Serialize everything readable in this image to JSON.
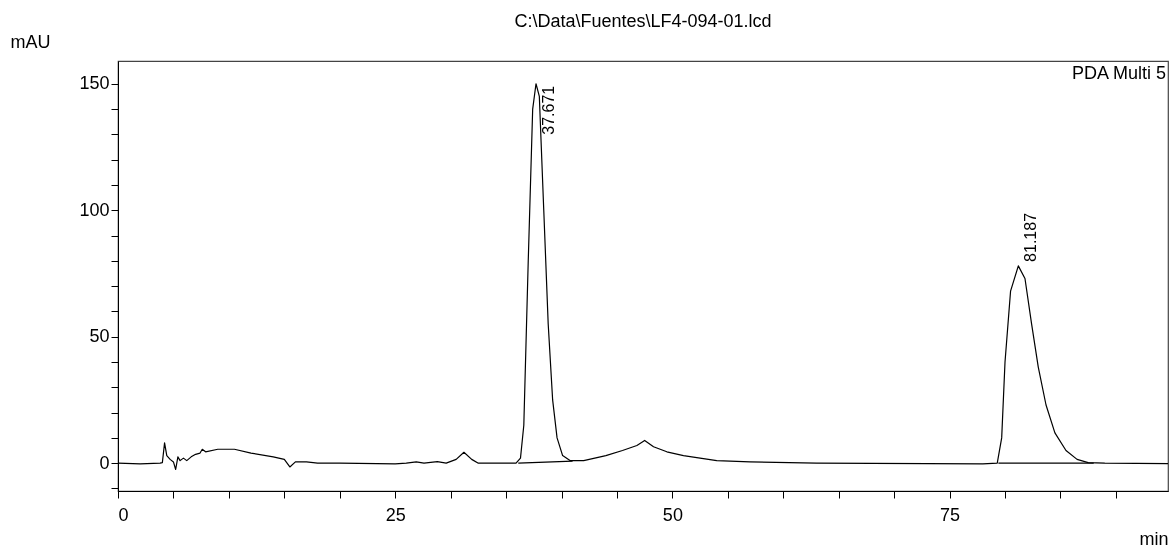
{
  "chart_data": {
    "type": "line",
    "title": "C:\\Data\\Fuentes\\LF4-094-01.lcd",
    "xlabel": "min",
    "ylabel": "mAU",
    "xlim": [
      0,
      94.7
    ],
    "ylim": [
      -11,
      159
    ],
    "xticks": [
      0,
      {
        "value": 5,
        "label": null
      },
      {
        "value": 10,
        "label": null
      },
      {
        "value": 15,
        "label": null
      },
      {
        "value": 20,
        "label": null
      },
      25,
      {
        "value": 30,
        "label": null
      },
      {
        "value": 35,
        "label": null
      },
      {
        "value": 40,
        "label": null
      },
      {
        "value": 45,
        "label": null
      },
      50,
      {
        "value": 55,
        "label": null
      },
      {
        "value": 60,
        "label": null
      },
      {
        "value": 65,
        "label": null
      },
      {
        "value": 70,
        "label": null
      },
      75,
      {
        "value": 80,
        "label": null
      },
      {
        "value": 85,
        "label": null
      },
      {
        "value": 90,
        "label": null
      }
    ],
    "yticks": [
      {
        "value": -10,
        "label": null
      },
      0,
      {
        "value": 10,
        "label": null
      },
      {
        "value": 20,
        "label": null
      },
      {
        "value": 30,
        "label": null
      },
      {
        "value": 40,
        "label": null
      },
      50,
      {
        "value": 60,
        "label": null
      },
      {
        "value": 70,
        "label": null
      },
      {
        "value": 80,
        "label": null
      },
      {
        "value": 90,
        "label": null
      },
      100,
      {
        "value": 110,
        "label": null
      },
      {
        "value": 120,
        "label": null
      },
      {
        "value": 130,
        "label": null
      },
      {
        "value": 140,
        "label": null
      },
      150
    ],
    "grid": false,
    "marker": "none",
    "line_style": "solid",
    "series": [
      {
        "color": "#000000",
        "x": [
          0,
          2,
          3.8,
          4.0,
          4.2,
          4.4,
          4.7,
          5.0,
          5.2,
          5.4,
          5.6,
          5.9,
          6.2,
          6.6,
          7.0,
          7.4,
          7.6,
          7.9,
          9.0,
          10.5,
          12,
          14,
          15,
          15.5,
          16,
          17,
          18,
          20,
          25,
          26,
          26.9,
          27.6,
          28.8,
          29.6,
          30.5,
          31.2,
          31.9,
          32.5,
          35,
          35.9,
          36.3,
          36.6,
          37.0,
          37.4,
          37.7,
          38.0,
          38.4,
          38.8,
          39.2,
          39.6,
          40.1,
          40.8,
          42,
          44,
          45.5,
          46.8,
          47.5,
          48.3,
          49.5,
          51,
          54,
          57,
          63,
          78,
          79.3,
          79.7,
          80.0,
          80.5,
          81.2,
          81.8,
          82.4,
          83,
          83.7,
          84.5,
          85.5,
          86.5,
          87.5,
          89,
          94.7
        ],
        "values": [
          0,
          -0.3,
          0,
          0.2,
          8,
          3,
          1.5,
          0.5,
          -2.5,
          2.5,
          1.0,
          2,
          1,
          2.5,
          3.5,
          4,
          5.5,
          4.5,
          5.5,
          5.5,
          4,
          2.5,
          1.5,
          -1.5,
          0.5,
          0.5,
          0,
          0,
          -0.3,
          0,
          0.5,
          0,
          0.6,
          0,
          1.5,
          4.3,
          1.5,
          0,
          0,
          0,
          2,
          15,
          80,
          140,
          150,
          145,
          100,
          55,
          25,
          10,
          3,
          1,
          1,
          3,
          5,
          7,
          9,
          6.5,
          4.5,
          3,
          1,
          0.5,
          0,
          -0.3,
          0,
          10,
          40,
          68,
          78,
          73,
          55,
          38,
          23,
          12,
          5,
          1.5,
          0.2,
          0,
          -0.2
        ]
      },
      {
        "color": "#000000",
        "x": [
          36.1,
          41.0
        ],
        "values": [
          0,
          0.8
        ]
      },
      {
        "color": "#000000",
        "x": [
          79.4,
          88.0
        ],
        "values": [
          0,
          0
        ]
      }
    ],
    "annotations": [
      {
        "text": "37.671",
        "x": 37.671,
        "y": 150
      },
      {
        "text": "81.187",
        "x": 81.187,
        "y": 78
      },
      "PDA Multi 5"
    ]
  }
}
